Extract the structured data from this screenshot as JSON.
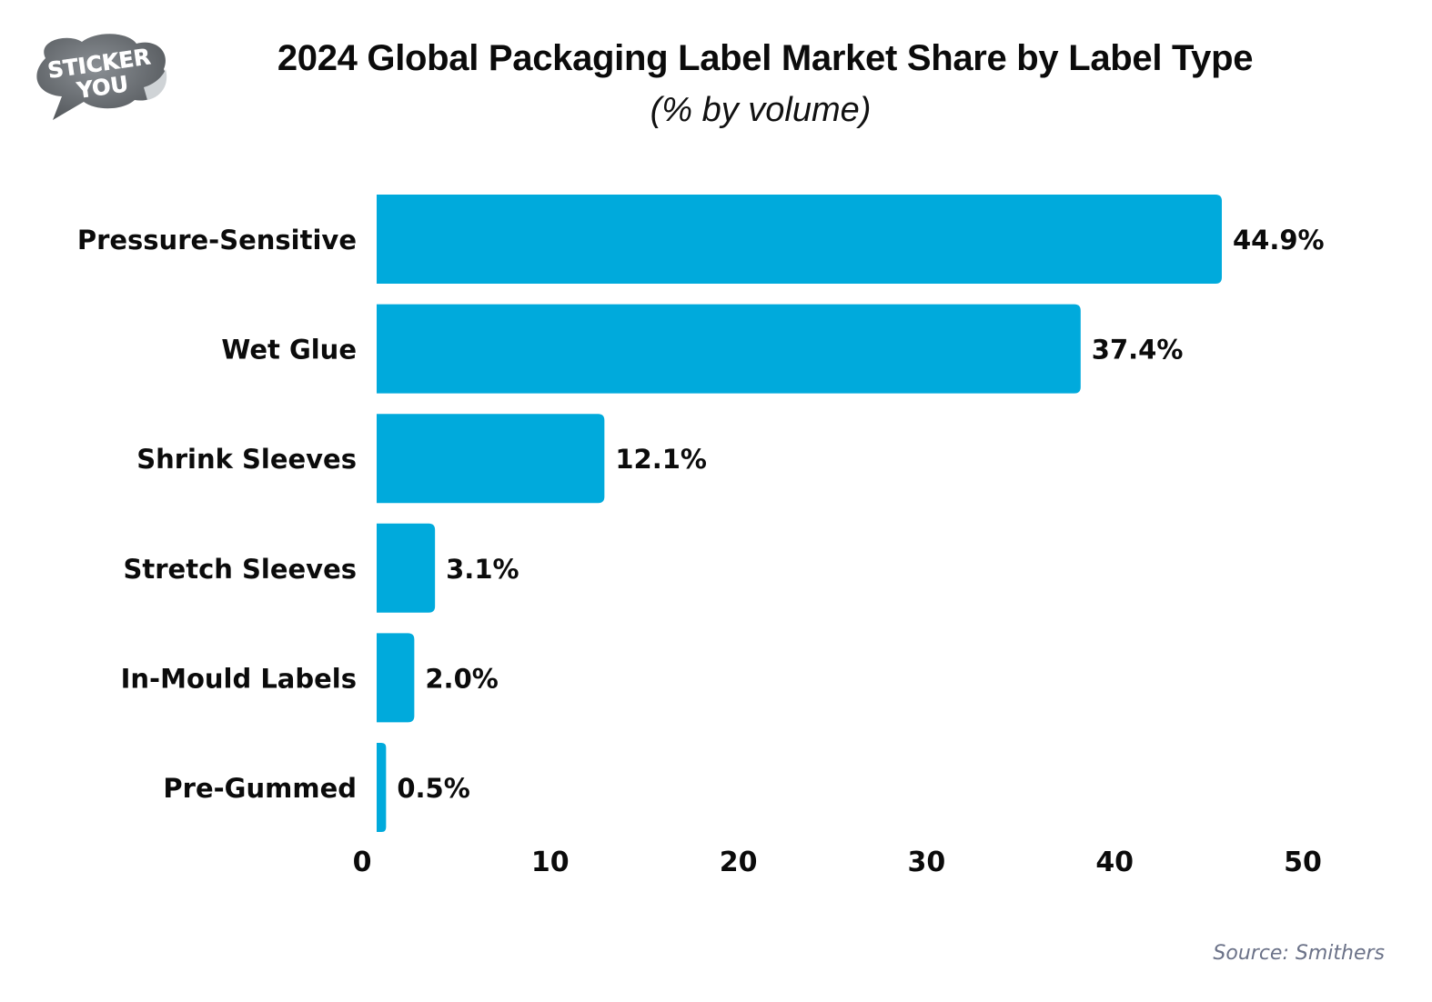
{
  "brand": {
    "logo_line1": "STICKER",
    "logo_line2": "YOU"
  },
  "colors": {
    "bar": "#00aadc",
    "text": "#0b0b0b",
    "source": "#6b7288",
    "logo": "#666b70"
  },
  "chart_data": {
    "type": "bar",
    "orientation": "horizontal",
    "title": "2024 Global Packaging Label Market Share by Label Type",
    "subtitle": "(% by volume)",
    "categories": [
      "Pressure-Sensitive",
      "Wet Glue",
      "Shrink Sleeves",
      "Stretch Sleeves",
      "In-Mould Labels",
      "Pre-Gummed"
    ],
    "values": [
      44.9,
      37.4,
      12.1,
      3.1,
      2.0,
      0.5
    ],
    "value_labels": [
      "44.9%",
      "37.4%",
      "12.1%",
      "3.1%",
      "2.0%",
      "0.5%"
    ],
    "xlabel": "",
    "ylabel": "",
    "xlim": [
      0,
      50
    ],
    "xticks": [
      "0",
      "10",
      "20",
      "30",
      "40",
      "50"
    ],
    "grid": false,
    "legend": "none"
  },
  "source": "Source: Smithers"
}
